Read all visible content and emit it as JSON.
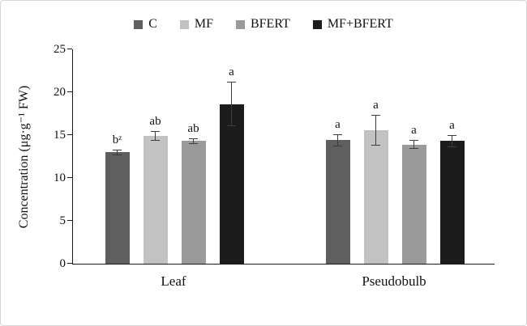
{
  "figure": {
    "background": "#ffffff",
    "border_color": "#d6d6d6",
    "axis_color": "#1a1a1a",
    "error_bar_color": "#3d3d3d"
  },
  "chart_data": {
    "type": "bar",
    "title": "",
    "xlabel": "",
    "ylabel": "Concentration (μg·g⁻¹ FW)",
    "ylim": [
      0,
      25
    ],
    "yticks": [
      0,
      5,
      10,
      15,
      20,
      25
    ],
    "grid": false,
    "legend_position": "top",
    "categories": [
      "Leaf",
      "Pseudobulb"
    ],
    "series": [
      {
        "name": "C",
        "color": "#5f5f5f",
        "values": [
          13.0,
          14.4
        ],
        "errors": [
          0.25,
          0.6
        ],
        "sig_labels": [
          "bᶻ",
          "a"
        ]
      },
      {
        "name": "MF",
        "color": "#c2c2c2",
        "values": [
          14.9,
          15.6
        ],
        "errors": [
          0.5,
          1.7
        ],
        "sig_labels": [
          "ab",
          "a"
        ]
      },
      {
        "name": "BFERT",
        "color": "#9a9a9a",
        "values": [
          14.3,
          13.9
        ],
        "errors": [
          0.25,
          0.4
        ],
        "sig_labels": [
          "ab",
          "a"
        ]
      },
      {
        "name": "MF+BFERT",
        "color": "#1c1c1c",
        "values": [
          18.6,
          14.3
        ],
        "errors": [
          2.5,
          0.6
        ],
        "sig_labels": [
          "a",
          "a"
        ]
      }
    ]
  }
}
